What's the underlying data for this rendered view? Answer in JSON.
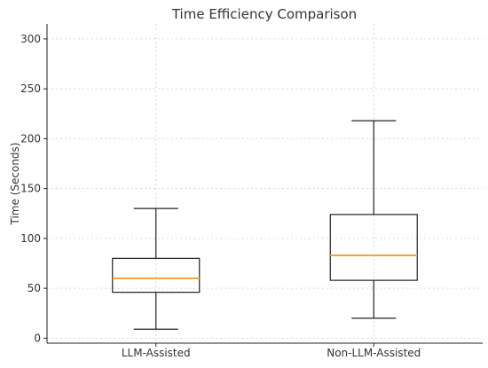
{
  "chart_data": {
    "type": "box",
    "title": "Time Efficiency Comparison",
    "xlabel": "",
    "ylabel": "Time (Seconds)",
    "ylim": [
      -5,
      315
    ],
    "yticks": [
      0,
      50,
      100,
      150,
      200,
      250,
      300
    ],
    "grid": true,
    "categories": [
      "LLM-Assisted",
      "Non-LLM-Assisted"
    ],
    "boxes": [
      {
        "category": "LLM-Assisted",
        "min": 9,
        "q1": 46,
        "median": 60,
        "q3": 80,
        "max": 130
      },
      {
        "category": "Non-LLM-Assisted",
        "min": 20,
        "q1": 58,
        "median": 83,
        "q3": 124,
        "max": 218
      }
    ],
    "colors": {
      "median": "#f0a830",
      "box": "#222222",
      "grid": "#cccccc",
      "axis": "#222222"
    }
  }
}
